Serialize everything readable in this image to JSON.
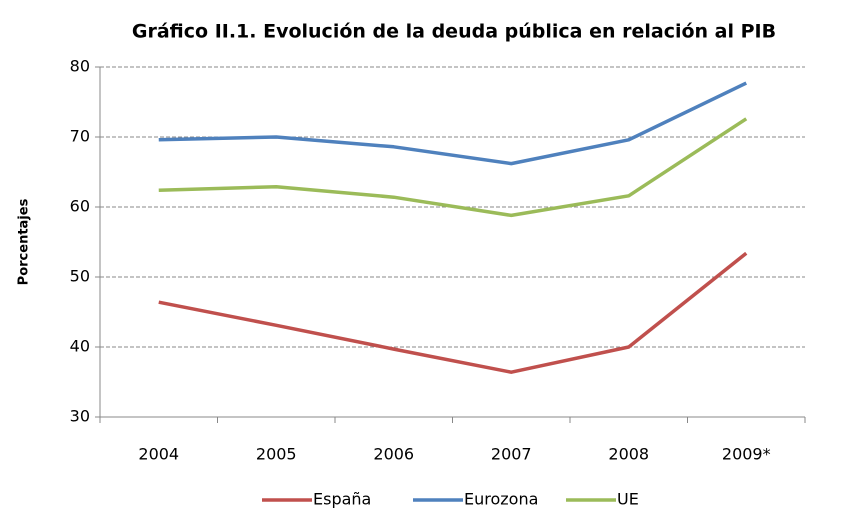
{
  "chart_data": {
    "type": "line",
    "title": "Gráfico II.1. Evolución de la deuda pública en relación al PIB",
    "y_label": "Porcentajes",
    "categories": [
      "2004",
      "2005",
      "2006",
      "2007",
      "2008",
      "2009*"
    ],
    "series": [
      {
        "name": "España",
        "color": "#c0504d",
        "values": [
          46.4,
          43.1,
          39.7,
          36.4,
          40.0,
          53.4
        ]
      },
      {
        "name": "Eurozona",
        "color": "#4f81bd",
        "values": [
          69.6,
          70.0,
          68.6,
          66.2,
          69.6,
          77.7
        ]
      },
      {
        "name": "UE",
        "color": "#9bbb59",
        "values": [
          62.4,
          62.9,
          61.4,
          58.8,
          61.6,
          72.6
        ]
      }
    ],
    "ylim": [
      30,
      80
    ],
    "yticks": [
      30,
      40,
      50,
      60,
      70,
      80
    ],
    "grid": true,
    "legend": "bottom"
  }
}
